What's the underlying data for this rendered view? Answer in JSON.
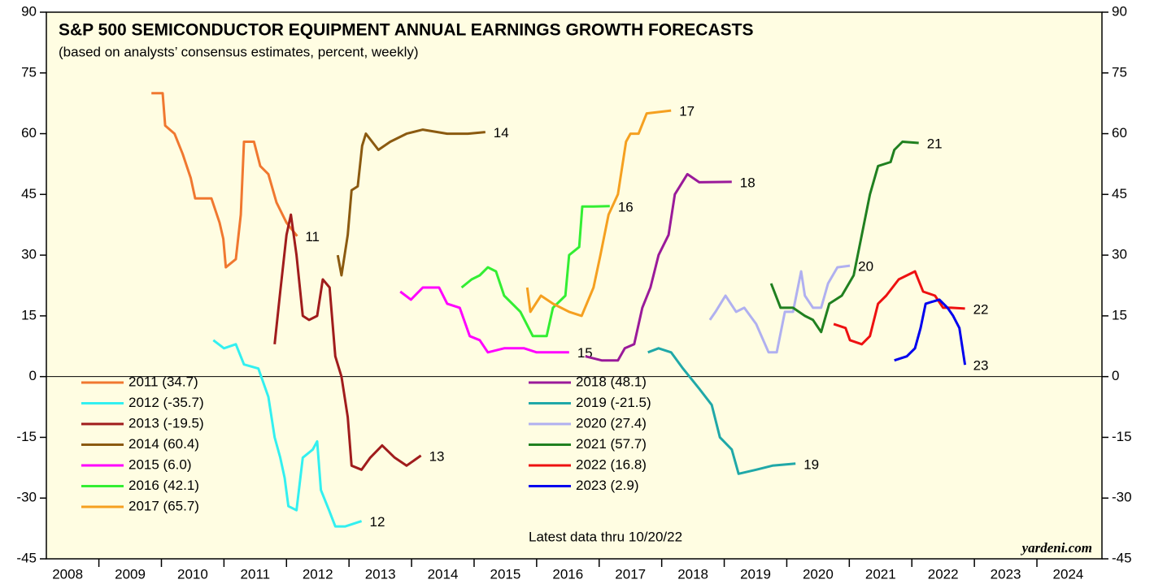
{
  "chart_data": {
    "type": "line",
    "title": "S&P 500 SEMICONDUCTOR EQUIPMENT ANNUAL EARNINGS GROWTH FORECASTS",
    "subtitle": "(based on analysts’ consensus estimates, percent, weekly)",
    "note": "Latest data thru 10/20/22",
    "source": "yardeni.com",
    "xlim": [
      2008.16,
      2025.04
    ],
    "xticks": [
      2009,
      2010,
      2011,
      2012,
      2013,
      2014,
      2015,
      2016,
      2017,
      2018,
      2019,
      2020,
      2021,
      2022,
      2023,
      2024
    ],
    "xtick_labels": [
      {
        "value": 2008.5,
        "label": "2008"
      },
      {
        "value": 2009.5,
        "label": "2009"
      },
      {
        "value": 2010.5,
        "label": "2010"
      },
      {
        "value": 2011.5,
        "label": "2011"
      },
      {
        "value": 2012.5,
        "label": "2012"
      },
      {
        "value": 2013.5,
        "label": "2013"
      },
      {
        "value": 2014.5,
        "label": "2014"
      },
      {
        "value": 2015.5,
        "label": "2015"
      },
      {
        "value": 2016.5,
        "label": "2016"
      },
      {
        "value": 2017.5,
        "label": "2017"
      },
      {
        "value": 2018.5,
        "label": "2018"
      },
      {
        "value": 2019.5,
        "label": "2019"
      },
      {
        "value": 2020.5,
        "label": "2020"
      },
      {
        "value": 2021.5,
        "label": "2021"
      },
      {
        "value": 2022.5,
        "label": "2022"
      },
      {
        "value": 2023.5,
        "label": "2023"
      },
      {
        "value": 2024.5,
        "label": "2024"
      }
    ],
    "ylim": [
      -45,
      90
    ],
    "yticks": [
      -45,
      -30,
      -15,
      0,
      15,
      30,
      45,
      60,
      75,
      90
    ],
    "zero_line": true,
    "series": [
      {
        "name": "2011 (34.7)",
        "end_label": "11",
        "color": "#f07830",
        "x": [
          2009.84,
          2010.02,
          2010.06,
          2010.21,
          2010.34,
          2010.47,
          2010.54,
          2010.8,
          2010.93,
          2010.99,
          2011.03,
          2011.19,
          2011.27,
          2011.32,
          2011.48,
          2011.58,
          2011.71,
          2011.84,
          2012.0,
          2012.17
        ],
        "values": [
          70,
          70,
          62,
          60,
          55,
          49,
          44,
          44,
          38,
          34,
          27,
          29,
          40,
          58,
          58,
          52,
          50,
          43,
          38,
          34.7
        ]
      },
      {
        "name": "2012 (-35.7)",
        "end_label": "12",
        "color": "#33f0f0",
        "x": [
          2010.83,
          2011.0,
          2011.19,
          2011.32,
          2011.55,
          2011.71,
          2011.81,
          2011.9,
          2011.97,
          2012.03,
          2012.16,
          2012.26,
          2012.42,
          2012.49,
          2012.55,
          2012.68,
          2012.78,
          2012.94,
          2013.14,
          2013.2
        ],
        "values": [
          9,
          7,
          8,
          3,
          2,
          -5,
          -15,
          -20,
          -25,
          -32,
          -33,
          -20,
          -18,
          -16,
          -28,
          -33,
          -37,
          -37,
          -36,
          -35.7
        ]
      },
      {
        "name": "2013 (-19.5)",
        "end_label": "13",
        "color": "#a01c1c",
        "x": [
          2011.81,
          2011.9,
          2012.0,
          2012.07,
          2012.16,
          2012.26,
          2012.36,
          2012.49,
          2012.58,
          2012.69,
          2012.78,
          2012.88,
          2012.98,
          2013.04,
          2013.2,
          2013.34,
          2013.53,
          2013.73,
          2013.92,
          2014.15
        ],
        "values": [
          8,
          21,
          35,
          40,
          30,
          15,
          14,
          15,
          24,
          22,
          5,
          0,
          -10,
          -22,
          -23,
          -20,
          -17,
          -20,
          -22,
          -19.5
        ]
      },
      {
        "name": "2014 (60.4)",
        "end_label": "14",
        "color": "#8b5a10",
        "x": [
          2012.82,
          2012.88,
          2012.98,
          2013.04,
          2013.14,
          2013.21,
          2013.27,
          2013.47,
          2013.66,
          2013.92,
          2014.18,
          2014.57,
          2014.9,
          2015.18
        ],
        "values": [
          30,
          25,
          35,
          46,
          47,
          57,
          60,
          56,
          58,
          60,
          61,
          60,
          60,
          60.4
        ]
      },
      {
        "name": "2015 (6.0)",
        "end_label": "15",
        "color": "#ff00ff",
        "x": [
          2013.82,
          2013.99,
          2014.18,
          2014.44,
          2014.57,
          2014.77,
          2014.93,
          2015.09,
          2015.22,
          2015.48,
          2015.8,
          2016.0,
          2016.52
        ],
        "values": [
          21,
          19,
          22,
          22,
          18,
          17,
          10,
          9,
          6,
          7,
          7,
          6,
          6.0
        ]
      },
      {
        "name": "2016 (42.1)",
        "end_label": "16",
        "color": "#33ee33",
        "x": [
          2014.8,
          2014.96,
          2015.09,
          2015.22,
          2015.35,
          2015.48,
          2015.74,
          2015.94,
          2016.16,
          2016.26,
          2016.46,
          2016.52,
          2016.68,
          2016.73,
          2016.91,
          2017.17
        ],
        "values": [
          22,
          24,
          25,
          27,
          26,
          20,
          16,
          10,
          10,
          17,
          20,
          30,
          32,
          42,
          42,
          42.1
        ]
      },
      {
        "name": "2017 (65.7)",
        "end_label": "17",
        "color": "#f5a020",
        "x": [
          2015.85,
          2015.9,
          2016.07,
          2016.26,
          2016.52,
          2016.72,
          2016.91,
          2017.02,
          2017.15,
          2017.3,
          2017.43,
          2017.5,
          2017.63,
          2017.76,
          2018.15
        ],
        "values": [
          22,
          16,
          20,
          18,
          16,
          15,
          22,
          30,
          40,
          45,
          58,
          60,
          60,
          65,
          65.7
        ]
      },
      {
        "name": "2018 (48.1)",
        "end_label": "18",
        "color": "#9a1a9a",
        "x": [
          2016.78,
          2017.04,
          2017.3,
          2017.41,
          2017.56,
          2017.69,
          2017.82,
          2017.95,
          2018.11,
          2018.21,
          2018.41,
          2018.6,
          2019.12
        ],
        "values": [
          5,
          4,
          4,
          7,
          8,
          17,
          22,
          30,
          35,
          45,
          50,
          48,
          48.1
        ]
      },
      {
        "name": "2019 (-21.5)",
        "end_label": "19",
        "color": "#20a8a8",
        "x": [
          2017.78,
          2017.95,
          2018.15,
          2018.34,
          2018.6,
          2018.8,
          2018.93,
          2019.12,
          2019.23,
          2019.51,
          2019.77,
          2020.14
        ],
        "values": [
          6,
          7,
          6,
          2,
          -3,
          -7,
          -15,
          -18,
          -24,
          -23,
          -22,
          -21.5
        ]
      },
      {
        "name": "2020 (27.4)",
        "end_label": "20",
        "color": "#b0b0f0",
        "x": [
          2018.77,
          2018.86,
          2019.02,
          2019.19,
          2019.32,
          2019.51,
          2019.71,
          2019.84,
          2019.97,
          2020.1,
          2020.23,
          2020.29,
          2020.42,
          2020.55,
          2020.66,
          2020.81,
          2021.01
        ],
        "values": [
          14,
          16,
          20,
          16,
          17,
          13,
          6,
          6,
          16,
          16,
          26,
          20,
          17,
          17,
          23,
          27,
          27.4
        ]
      },
      {
        "name": "2021 (57.7)",
        "end_label": "21",
        "color": "#208020",
        "x": [
          2019.75,
          2019.9,
          2020.1,
          2020.29,
          2020.42,
          2020.55,
          2020.68,
          2020.88,
          2021.07,
          2021.2,
          2021.33,
          2021.46,
          2021.66,
          2021.72,
          2021.85,
          2022.11
        ],
        "values": [
          23,
          17,
          17,
          15,
          14,
          11,
          18,
          20,
          25,
          35,
          45,
          52,
          53,
          56,
          58,
          57.7
        ]
      },
      {
        "name": "2022 (16.8)",
        "end_label": "22",
        "color": "#ee1111",
        "x": [
          2020.75,
          2020.94,
          2021.01,
          2021.2,
          2021.33,
          2021.46,
          2021.59,
          2021.79,
          2022.05,
          2022.18,
          2022.37,
          2022.5,
          2022.63,
          2022.85
        ],
        "values": [
          13,
          12,
          9,
          8,
          10,
          18,
          20,
          24,
          26,
          21,
          20,
          17,
          17,
          16.8
        ]
      },
      {
        "name": "2023 (2.9)",
        "end_label": "23",
        "color": "#0000ee",
        "x": [
          2021.72,
          2021.92,
          2022.05,
          2022.14,
          2022.22,
          2022.44,
          2022.57,
          2022.66,
          2022.76,
          2022.85
        ],
        "values": [
          4,
          5,
          7,
          12,
          18,
          19,
          17,
          15,
          12,
          2.9
        ]
      }
    ]
  }
}
